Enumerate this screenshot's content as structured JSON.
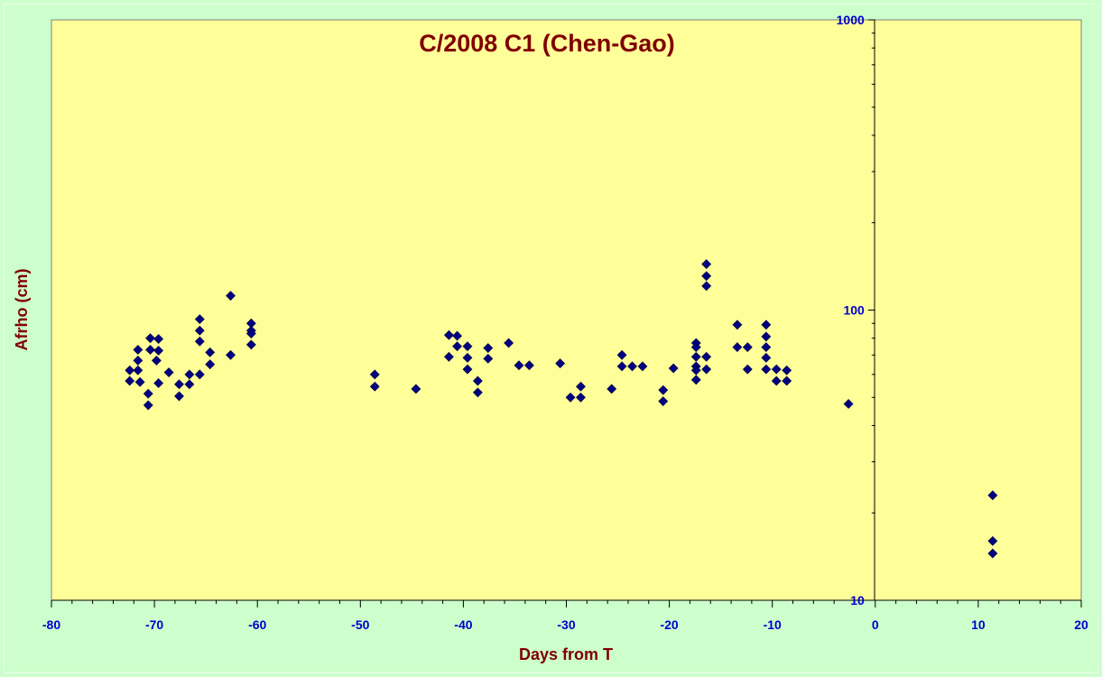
{
  "chart_data": {
    "type": "scatter",
    "title": "C/2008 C1 (Chen-Gao)",
    "xlabel": "Days from T",
    "ylabel": "Afrho (cm)",
    "xlim": [
      -80,
      20
    ],
    "ylim": [
      10,
      1000
    ],
    "yscale": "log",
    "x_ticks": [
      -80,
      -70,
      -60,
      -50,
      -40,
      -30,
      -20,
      -10,
      0,
      10,
      20
    ],
    "y_ticks": [
      10,
      100,
      1000
    ],
    "grid": false,
    "legend": "none",
    "marker": "diamond",
    "colors": {
      "plot_background": "#ffff99",
      "page_background": "#ccffcc",
      "marker": "#000080",
      "title": "#800000",
      "tick_labels": "#0000cc",
      "axes": "#000000"
    },
    "series": [
      {
        "points": [
          {
            "x": -72.4,
            "y": 62
          },
          {
            "x": -72.4,
            "y": 57
          },
          {
            "x": -71.6,
            "y": 73
          },
          {
            "x": -71.6,
            "y": 67
          },
          {
            "x": -71.6,
            "y": 62
          },
          {
            "x": -71.4,
            "y": 56.5
          },
          {
            "x": -70.4,
            "y": 80
          },
          {
            "x": -70.4,
            "y": 73
          },
          {
            "x": -70.6,
            "y": 51.5
          },
          {
            "x": -70.6,
            "y": 47
          },
          {
            "x": -69.6,
            "y": 79.5
          },
          {
            "x": -69.6,
            "y": 72.5
          },
          {
            "x": -69.8,
            "y": 67
          },
          {
            "x": -69.6,
            "y": 56
          },
          {
            "x": -68.6,
            "y": 61
          },
          {
            "x": -67.6,
            "y": 55.5
          },
          {
            "x": -67.6,
            "y": 50.5
          },
          {
            "x": -66.6,
            "y": 60
          },
          {
            "x": -66.6,
            "y": 55.5
          },
          {
            "x": -65.6,
            "y": 93
          },
          {
            "x": -65.6,
            "y": 85
          },
          {
            "x": -65.6,
            "y": 78
          },
          {
            "x": -65.6,
            "y": 60
          },
          {
            "x": -64.6,
            "y": 71.5
          },
          {
            "x": -64.6,
            "y": 65
          },
          {
            "x": -62.6,
            "y": 112
          },
          {
            "x": -62.6,
            "y": 70
          },
          {
            "x": -60.6,
            "y": 90
          },
          {
            "x": -60.6,
            "y": 85
          },
          {
            "x": -60.6,
            "y": 83
          },
          {
            "x": -60.6,
            "y": 76
          },
          {
            "x": -48.6,
            "y": 60
          },
          {
            "x": -48.6,
            "y": 54.5
          },
          {
            "x": -44.6,
            "y": 53.5
          },
          {
            "x": -41.4,
            "y": 82
          },
          {
            "x": -41.4,
            "y": 69
          },
          {
            "x": -40.6,
            "y": 81.5
          },
          {
            "x": -40.6,
            "y": 75
          },
          {
            "x": -39.6,
            "y": 75
          },
          {
            "x": -39.6,
            "y": 68.5
          },
          {
            "x": -39.6,
            "y": 62.5
          },
          {
            "x": -38.6,
            "y": 57
          },
          {
            "x": -38.6,
            "y": 52
          },
          {
            "x": -37.6,
            "y": 74
          },
          {
            "x": -37.6,
            "y": 68
          },
          {
            "x": -35.6,
            "y": 77
          },
          {
            "x": -34.6,
            "y": 64.5
          },
          {
            "x": -33.6,
            "y": 64.5
          },
          {
            "x": -30.6,
            "y": 65.5
          },
          {
            "x": -29.6,
            "y": 50
          },
          {
            "x": -28.6,
            "y": 54.5
          },
          {
            "x": -28.6,
            "y": 50
          },
          {
            "x": -25.6,
            "y": 53.5
          },
          {
            "x": -24.6,
            "y": 70
          },
          {
            "x": -24.6,
            "y": 64
          },
          {
            "x": -23.6,
            "y": 64
          },
          {
            "x": -22.6,
            "y": 64
          },
          {
            "x": -20.6,
            "y": 53
          },
          {
            "x": -20.6,
            "y": 48.5
          },
          {
            "x": -19.6,
            "y": 63
          },
          {
            "x": -17.4,
            "y": 77
          },
          {
            "x": -17.4,
            "y": 74.5
          },
          {
            "x": -17.4,
            "y": 69
          },
          {
            "x": -17.4,
            "y": 64
          },
          {
            "x": -17.4,
            "y": 62
          },
          {
            "x": -17.4,
            "y": 57.5
          },
          {
            "x": -16.4,
            "y": 144
          },
          {
            "x": -16.4,
            "y": 131
          },
          {
            "x": -16.4,
            "y": 121
          },
          {
            "x": -16.4,
            "y": 69
          },
          {
            "x": -16.4,
            "y": 62.5
          },
          {
            "x": -13.4,
            "y": 89
          },
          {
            "x": -13.4,
            "y": 74.5
          },
          {
            "x": -12.4,
            "y": 74.5
          },
          {
            "x": -12.4,
            "y": 62.5
          },
          {
            "x": -10.6,
            "y": 89
          },
          {
            "x": -10.6,
            "y": 81
          },
          {
            "x": -10.6,
            "y": 74.5
          },
          {
            "x": -10.6,
            "y": 68.5
          },
          {
            "x": -10.6,
            "y": 62.5
          },
          {
            "x": -9.6,
            "y": 62.5
          },
          {
            "x": -9.6,
            "y": 57
          },
          {
            "x": -8.6,
            "y": 62
          },
          {
            "x": -8.6,
            "y": 57
          },
          {
            "x": -2.6,
            "y": 47.5
          },
          {
            "x": 11.4,
            "y": 23
          },
          {
            "x": 11.4,
            "y": 16
          },
          {
            "x": 11.4,
            "y": 14.5
          }
        ]
      }
    ]
  }
}
